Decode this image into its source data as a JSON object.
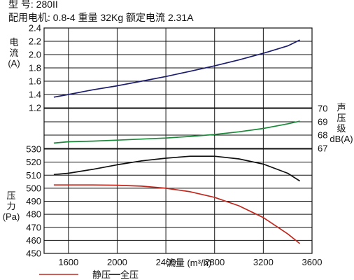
{
  "header": {
    "model_line": "型  号: 280II",
    "spec_line": "配用电机: 0.8-4 重量 32Kg 额定电流 2.31A"
  },
  "chart_data": {
    "type": "line",
    "x": {
      "label": "流量 (m³/h)",
      "ticks": [
        "1600",
        "2000",
        "2400",
        "2800",
        "3200",
        "3600"
      ],
      "range": [
        1400,
        3600
      ]
    },
    "panels": {
      "current": {
        "label_lines": [
          "电",
          "流",
          "(A)"
        ],
        "range": [
          1.2,
          2.4
        ],
        "ticks": [
          "1.2",
          "1.4",
          "1.6",
          "1.8",
          "2.0",
          "2.2",
          "2.4"
        ]
      },
      "noise": {
        "label_lines": [
          "声",
          "压",
          "级",
          "dB(A)"
        ],
        "range": [
          67,
          70
        ],
        "ticks": [
          "67",
          "68",
          "69",
          "70"
        ]
      },
      "pressure": {
        "label_lines": [
          "压",
          "力",
          "(Pa)"
        ],
        "range": [
          450,
          530
        ],
        "ticks": [
          "450",
          "460",
          "470",
          "480",
          "490",
          "500",
          "510",
          "520",
          "530"
        ]
      }
    },
    "series": [
      {
        "key": "current",
        "axis": "current",
        "color": "#1c1c6e",
        "points": [
          [
            1480,
            1.36
          ],
          [
            1600,
            1.4
          ],
          [
            1800,
            1.47
          ],
          [
            2000,
            1.53
          ],
          [
            2200,
            1.6
          ],
          [
            2400,
            1.67
          ],
          [
            2600,
            1.75
          ],
          [
            2800,
            1.83
          ],
          [
            3000,
            1.92
          ],
          [
            3200,
            2.02
          ],
          [
            3400,
            2.13
          ],
          [
            3500,
            2.22
          ]
        ]
      },
      {
        "key": "noise",
        "axis": "noise",
        "color": "#1a8a3a",
        "points": [
          [
            1480,
            67.4
          ],
          [
            1600,
            67.5
          ],
          [
            1800,
            67.55
          ],
          [
            2000,
            67.62
          ],
          [
            2200,
            67.7
          ],
          [
            2400,
            67.78
          ],
          [
            2600,
            67.9
          ],
          [
            2800,
            68.05
          ],
          [
            3000,
            68.25
          ],
          [
            3200,
            68.5
          ],
          [
            3400,
            68.85
          ],
          [
            3500,
            69.05
          ]
        ]
      },
      {
        "key": "total_pressure",
        "axis": "pressure",
        "color": "#111111",
        "name": "全压",
        "points": [
          [
            1480,
            510.5
          ],
          [
            1600,
            511.5
          ],
          [
            1800,
            514.5
          ],
          [
            2000,
            518
          ],
          [
            2200,
            521
          ],
          [
            2400,
            523
          ],
          [
            2600,
            524.5
          ],
          [
            2800,
            524.5
          ],
          [
            3000,
            522.5
          ],
          [
            3200,
            518.5
          ],
          [
            3400,
            511.5
          ],
          [
            3500,
            505.5
          ]
        ]
      },
      {
        "key": "static_pressure",
        "axis": "pressure",
        "color": "#c0281e",
        "name": "静压",
        "points": [
          [
            1480,
            502.5
          ],
          [
            1600,
            502.5
          ],
          [
            1800,
            502.5
          ],
          [
            2000,
            502.3
          ],
          [
            2200,
            501.6
          ],
          [
            2400,
            500
          ],
          [
            2600,
            497.3
          ],
          [
            2800,
            493
          ],
          [
            3000,
            486.5
          ],
          [
            3200,
            477.5
          ],
          [
            3400,
            465
          ],
          [
            3500,
            457.5
          ]
        ]
      }
    ],
    "grid": true,
    "legend": {
      "position": "bottom",
      "items": [
        "静压",
        "全压"
      ]
    }
  }
}
